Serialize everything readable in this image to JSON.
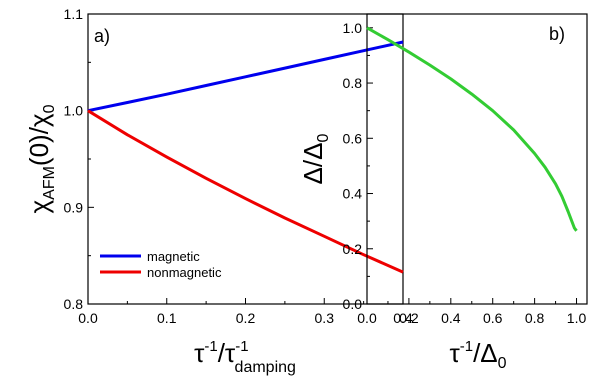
{
  "chart_data": [
    {
      "type": "line",
      "panel_label": "a)",
      "xlabel": "τ-1/τ-1damping",
      "ylabel": "χAFM(0)/χ0",
      "xlim": [
        0.0,
        0.4
      ],
      "ylim": [
        0.8,
        1.1
      ],
      "xticks": [
        "0.0",
        "0.1",
        "0.2",
        "0.3",
        "0.4"
      ],
      "yticks": [
        "0.8",
        "0.9",
        "1.0",
        "1.1"
      ],
      "legend_position": "bottom-left",
      "series": [
        {
          "name": "magnetic",
          "color": "#0000ee",
          "x": [
            0.0,
            0.05,
            0.1,
            0.15,
            0.2,
            0.25,
            0.3,
            0.35,
            0.4
          ],
          "y": [
            1.0,
            1.0085,
            1.017,
            1.026,
            1.035,
            1.044,
            1.053,
            1.062,
            1.071
          ]
        },
        {
          "name": "nonmagnetic",
          "color": "#ee0000",
          "x": [
            0.0,
            0.05,
            0.1,
            0.15,
            0.2,
            0.25,
            0.3,
            0.35,
            0.4
          ],
          "y": [
            1.0,
            0.975,
            0.952,
            0.93,
            0.909,
            0.889,
            0.87,
            0.851,
            0.833
          ]
        }
      ]
    },
    {
      "type": "line",
      "panel_label": "b)",
      "xlabel": "τ-1/Δ0",
      "ylabel": "Δ/Δ0",
      "xlim": [
        0.0,
        1.05
      ],
      "ylim": [
        0.0,
        1.05
      ],
      "xticks": [
        "0.0",
        "0.2",
        "0.4",
        "0.6",
        "0.8",
        "1.0"
      ],
      "yticks": [
        "0.0",
        "0.2",
        "0.4",
        "0.6",
        "0.8",
        "1.0"
      ],
      "series": [
        {
          "color": "#33cc33",
          "x": [
            0.0,
            0.1,
            0.2,
            0.3,
            0.4,
            0.5,
            0.6,
            0.7,
            0.8,
            0.85,
            0.9,
            0.93,
            0.96,
            0.98,
            0.99,
            1.0
          ],
          "y": [
            1.0,
            0.957,
            0.912,
            0.865,
            0.815,
            0.76,
            0.7,
            0.63,
            0.545,
            0.495,
            0.435,
            0.39,
            0.335,
            0.295,
            0.275,
            0.265
          ]
        }
      ]
    }
  ]
}
